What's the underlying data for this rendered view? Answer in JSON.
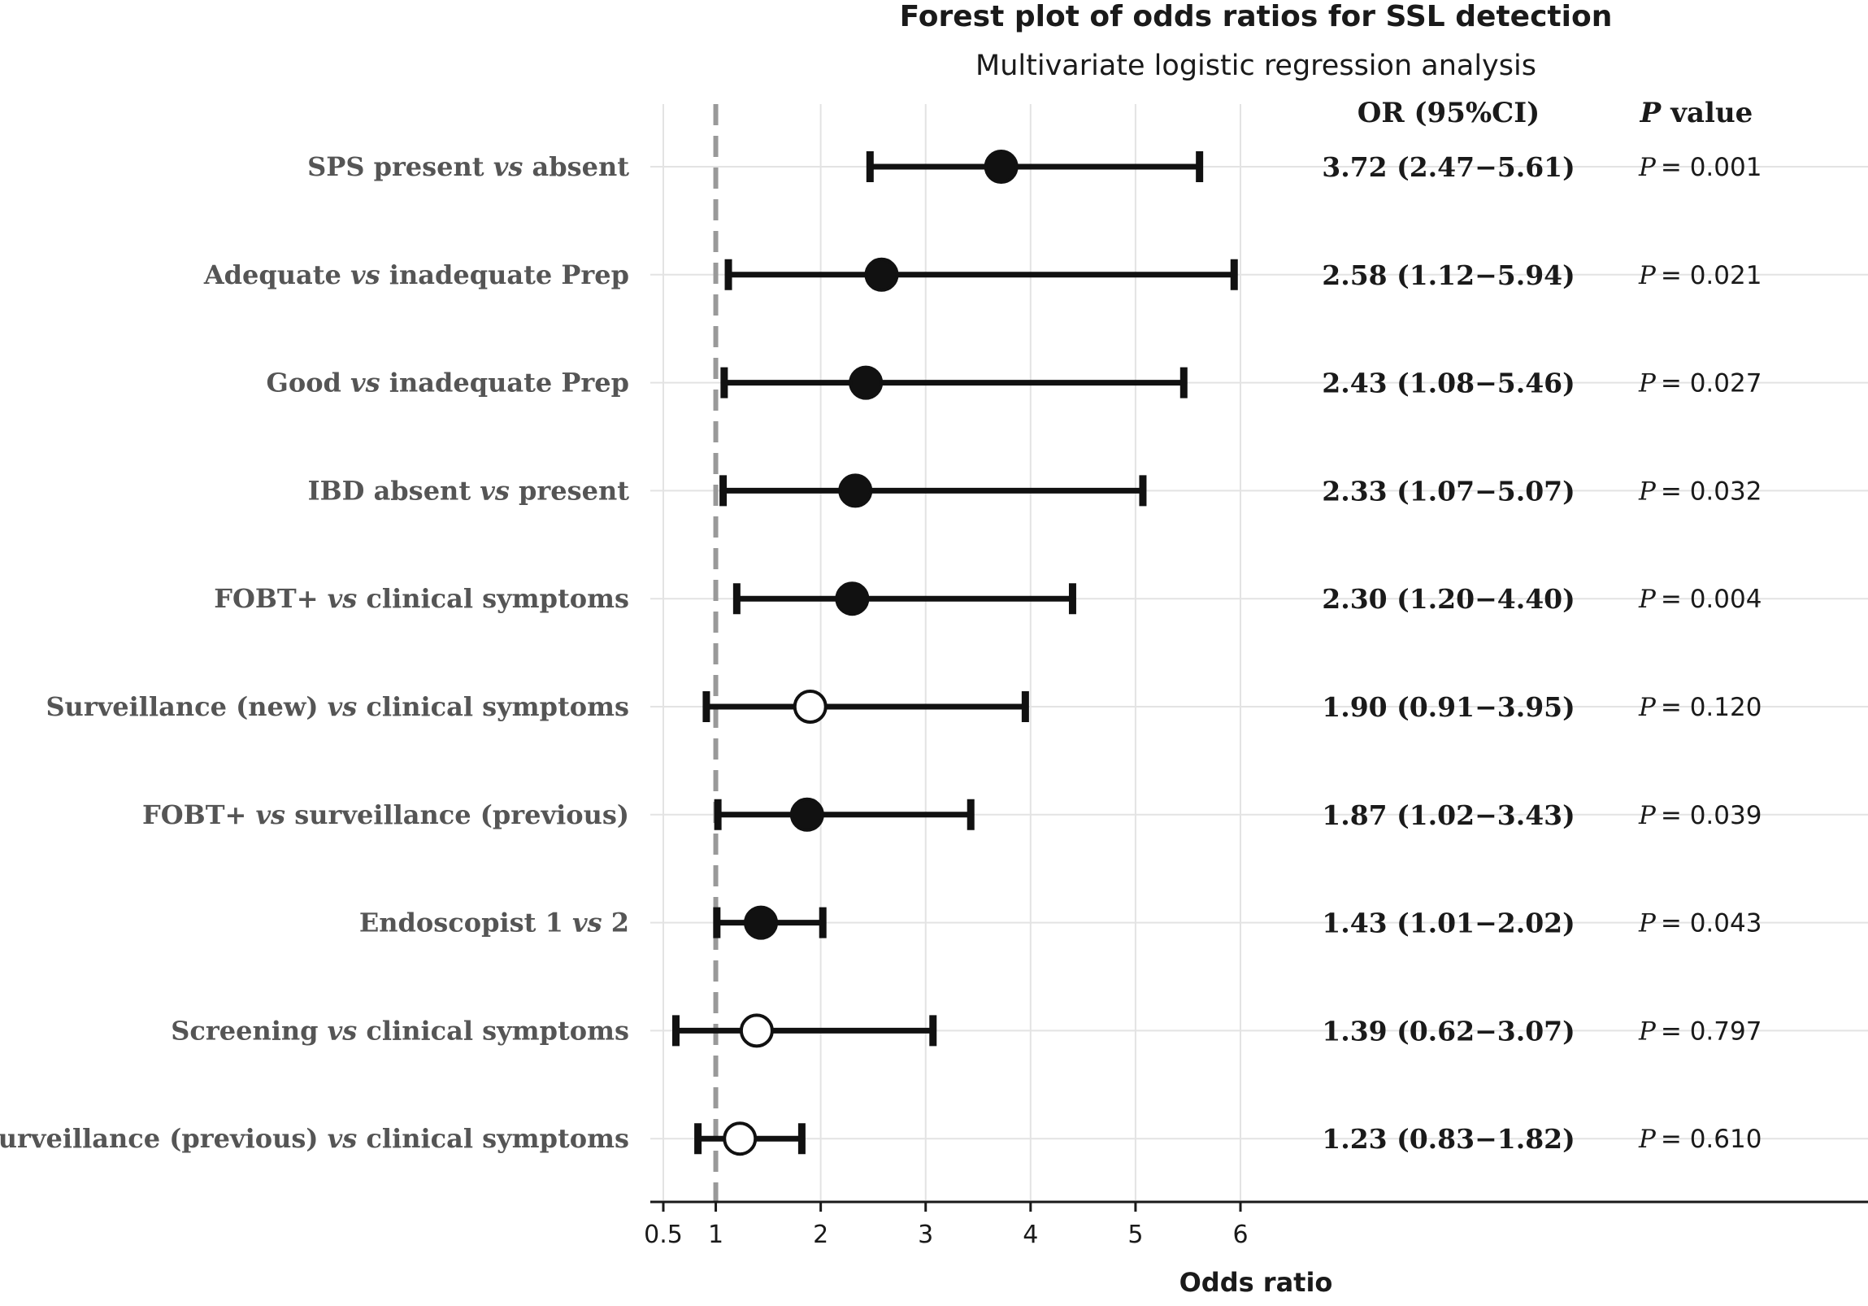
{
  "chart_data": {
    "type": "forest",
    "title": "Forest plot of odds ratios for SSL detection",
    "subtitle": "Multivariate logistic regression analysis",
    "xlabel": "Odds ratio",
    "xlim": [
      0.5,
      6
    ],
    "xticks": [
      0.5,
      1,
      2,
      3,
      4,
      5,
      6
    ],
    "reference_line": 1,
    "grid": true,
    "column_headers": {
      "or": "OR (95%CI)",
      "p_prefix": "P",
      "p_suffix": "value"
    },
    "rows": [
      {
        "pre": "SPS present",
        "vs": "vs",
        "post": "absent",
        "or": 3.72,
        "lo": 2.47,
        "hi": 5.61,
        "or_text": "3.72 (2.47−5.61)",
        "p_text": "= 0.001",
        "significant": true
      },
      {
        "pre": "Adequate",
        "vs": "vs",
        "post": "inadequate Prep",
        "or": 2.58,
        "lo": 1.12,
        "hi": 5.94,
        "or_text": "2.58 (1.12−5.94)",
        "p_text": "= 0.021",
        "significant": true
      },
      {
        "pre": "Good",
        "vs": "vs",
        "post": "inadequate Prep",
        "or": 2.43,
        "lo": 1.08,
        "hi": 5.46,
        "or_text": "2.43 (1.08−5.46)",
        "p_text": "= 0.027",
        "significant": true
      },
      {
        "pre": "IBD absent",
        "vs": "vs",
        "post": "present",
        "or": 2.33,
        "lo": 1.07,
        "hi": 5.07,
        "or_text": "2.33 (1.07−5.07)",
        "p_text": "= 0.032",
        "significant": true
      },
      {
        "pre": "FOBT+",
        "vs": "vs",
        "post": "clinical symptoms",
        "or": 2.3,
        "lo": 1.2,
        "hi": 4.4,
        "or_text": "2.30 (1.20−4.40)",
        "p_text": "= 0.004",
        "significant": true
      },
      {
        "pre": "Surveillance (new)",
        "vs": "vs",
        "post": "clinical symptoms",
        "or": 1.9,
        "lo": 0.91,
        "hi": 3.95,
        "or_text": "1.90 (0.91−3.95)",
        "p_text": "= 0.120",
        "significant": false
      },
      {
        "pre": "FOBT+",
        "vs": "vs",
        "post": "surveillance (previous)",
        "or": 1.87,
        "lo": 1.02,
        "hi": 3.43,
        "or_text": "1.87 (1.02−3.43)",
        "p_text": "= 0.039",
        "significant": true
      },
      {
        "pre": "Endoscopist 1",
        "vs": "vs",
        "post": "2",
        "or": 1.43,
        "lo": 1.01,
        "hi": 2.02,
        "or_text": "1.43 (1.01−2.02)",
        "p_text": "= 0.043",
        "significant": true
      },
      {
        "pre": "Screening",
        "vs": "vs",
        "post": "clinical symptoms",
        "or": 1.39,
        "lo": 0.62,
        "hi": 3.07,
        "or_text": "1.39 (0.62−3.07)",
        "p_text": "= 0.797",
        "significant": false
      },
      {
        "pre": "Surveillance (previous)",
        "vs": "vs",
        "post": "clinical symptoms",
        "or": 1.23,
        "lo": 0.83,
        "hi": 1.82,
        "or_text": "1.23 (0.83−1.82)",
        "p_text": "= 0.610",
        "significant": false
      }
    ]
  }
}
